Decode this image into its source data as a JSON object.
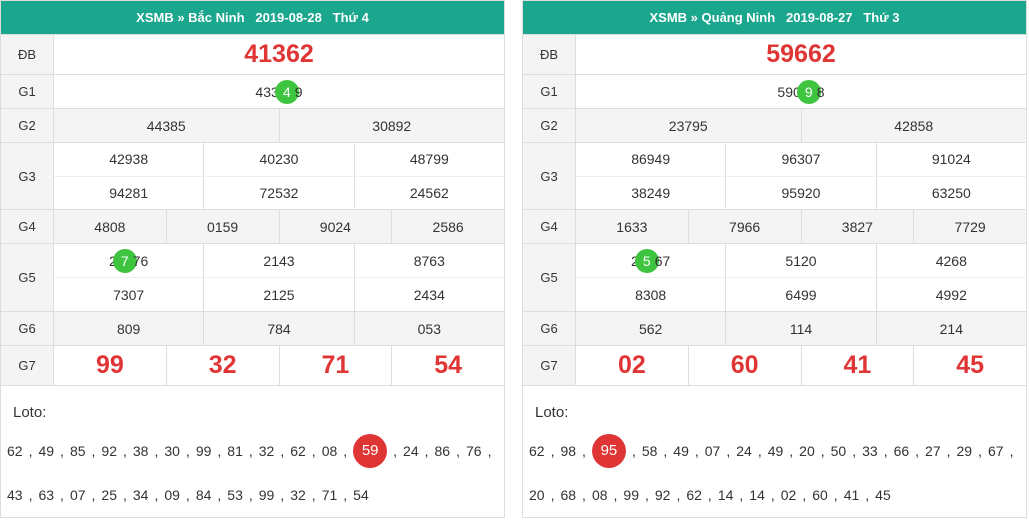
{
  "panels": [
    {
      "header": "XSMB » Bắc Ninh   2019-08-28   Thứ 4",
      "rows": [
        {
          "label": "ĐB",
          "big": true,
          "lines": [
            [
              "41362"
            ]
          ]
        },
        {
          "label": "G1",
          "lines": [
            [
              {
                "before": "433",
                "circle": "4",
                "after": "9"
              }
            ]
          ]
        },
        {
          "label": "G2",
          "lines": [
            [
              "44385",
              "30892"
            ]
          ]
        },
        {
          "label": "G3",
          "lines": [
            [
              "42938",
              "40230",
              "48799"
            ],
            [
              "94281",
              "72532",
              "24562"
            ]
          ]
        },
        {
          "label": "G4",
          "lines": [
            [
              "4808",
              "0159",
              "9024",
              "2586"
            ]
          ]
        },
        {
          "label": "G5",
          "lines": [
            [
              {
                "before": "2",
                "circle": "7",
                "after": "76"
              },
              "2143",
              "8763"
            ],
            [
              "7307",
              "2125",
              "2434"
            ]
          ]
        },
        {
          "label": "G6",
          "lines": [
            [
              "809",
              "784",
              "053"
            ]
          ]
        },
        {
          "label": "G7",
          "big": true,
          "lines": [
            [
              "99",
              "32",
              "71",
              "54"
            ]
          ]
        }
      ],
      "loto": {
        "label": "Loto:",
        "separator": ",",
        "highlight": 11,
        "numbers": [
          "62",
          "49",
          "85",
          "92",
          "38",
          "30",
          "99",
          "81",
          "32",
          "62",
          "08",
          "59",
          "24",
          "86",
          "76",
          "43",
          "63",
          "07",
          "25",
          "34",
          "09",
          "84",
          "53",
          "99",
          "32",
          "71",
          "54"
        ]
      }
    },
    {
      "header": "XSMB » Quảng Ninh   2019-08-27   Thứ 3",
      "rows": [
        {
          "label": "ĐB",
          "big": true,
          "lines": [
            [
              "59662"
            ]
          ]
        },
        {
          "label": "G1",
          "lines": [
            [
              {
                "before": "590",
                "circle": "9",
                "after": "8"
              }
            ]
          ]
        },
        {
          "label": "G2",
          "lines": [
            [
              "23795",
              "42858"
            ]
          ]
        },
        {
          "label": "G3",
          "lines": [
            [
              "86949",
              "96307",
              "91024"
            ],
            [
              "38249",
              "95920",
              "63250"
            ]
          ]
        },
        {
          "label": "G4",
          "lines": [
            [
              "1633",
              "7966",
              "3827",
              "7729"
            ]
          ]
        },
        {
          "label": "G5",
          "lines": [
            [
              {
                "before": "2",
                "circle": "5",
                "after": "67"
              },
              "5120",
              "4268"
            ],
            [
              "8308",
              "6499",
              "4992"
            ]
          ]
        },
        {
          "label": "G6",
          "lines": [
            [
              "562",
              "114",
              "214"
            ]
          ]
        },
        {
          "label": "G7",
          "big": true,
          "lines": [
            [
              "02",
              "60",
              "41",
              "45"
            ]
          ]
        }
      ],
      "loto": {
        "label": "Loto:",
        "separator": ",",
        "highlight": 2,
        "numbers": [
          "62",
          "98",
          "95",
          "58",
          "49",
          "07",
          "24",
          "49",
          "20",
          "50",
          "33",
          "66",
          "27",
          "29",
          "67",
          "20",
          "68",
          "08",
          "99",
          "92",
          "62",
          "14",
          "14",
          "02",
          "60",
          "41",
          "45"
        ]
      }
    }
  ]
}
